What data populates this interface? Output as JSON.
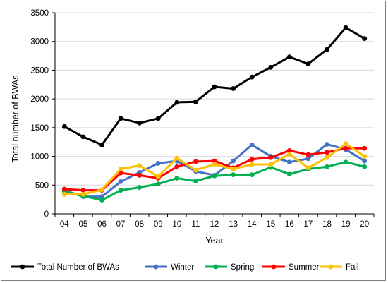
{
  "chart_data": {
    "type": "line",
    "xlabel": "Year",
    "ylabel": "Total number of BWAs",
    "ylim": [
      0,
      3500
    ],
    "yticks": [
      0,
      500,
      1000,
      1500,
      2000,
      2500,
      3000,
      3500
    ],
    "categories": [
      "04",
      "05",
      "06",
      "07",
      "08",
      "09",
      "10",
      "11",
      "12",
      "13",
      "14",
      "15",
      "16",
      "17",
      "18",
      "19",
      "20"
    ],
    "grid": "horizontal",
    "legend_position": "bottom",
    "series": [
      {
        "name": "Total Number of BWAs",
        "color": "#000000",
        "values": [
          1520,
          1340,
          1200,
          1660,
          1580,
          1660,
          1940,
          1950,
          2210,
          2180,
          2380,
          2550,
          2730,
          2610,
          2860,
          3240,
          3050
        ]
      },
      {
        "name": "Winter",
        "color": "#4472C4",
        "values": [
          410,
          300,
          300,
          560,
          720,
          880,
          920,
          740,
          670,
          920,
          1200,
          1000,
          900,
          960,
          1210,
          1120,
          920
        ]
      },
      {
        "name": "Spring",
        "color": "#00B050",
        "values": [
          390,
          310,
          240,
          410,
          460,
          520,
          620,
          570,
          660,
          680,
          680,
          810,
          690,
          780,
          820,
          900,
          820
        ]
      },
      {
        "name": "Summer",
        "color": "#FF0000",
        "values": [
          430,
          410,
          410,
          710,
          670,
          620,
          820,
          910,
          920,
          800,
          950,
          980,
          1100,
          1030,
          1070,
          1140,
          1140
        ]
      },
      {
        "name": "Fall",
        "color": "#FFC000",
        "values": [
          340,
          340,
          420,
          780,
          840,
          650,
          970,
          760,
          860,
          780,
          860,
          860,
          1040,
          800,
          980,
          1220,
          1000
        ]
      }
    ]
  }
}
